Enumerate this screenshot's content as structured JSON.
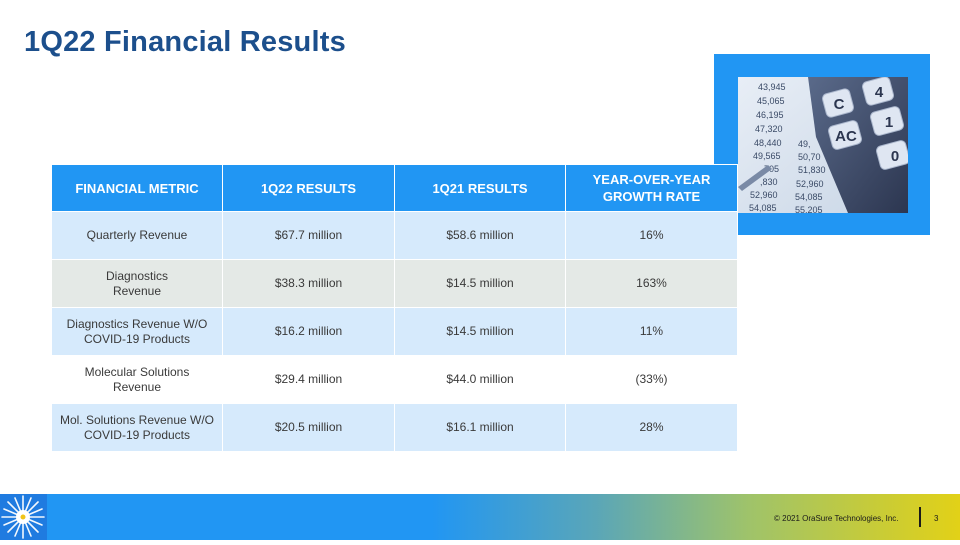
{
  "slide": {
    "title": "1Q22 Financial Results",
    "page_number": "3"
  },
  "table": {
    "headers": [
      "FINANCIAL METRIC",
      "1Q22 RESULTS",
      "1Q21 RESULTS",
      "YEAR-OVER-YEAR GROWTH RATE"
    ],
    "rows": [
      [
        "Quarterly Revenue",
        "$67.7 million",
        "$58.6 million",
        "16%"
      ],
      [
        "Diagnostics Revenue",
        "$38.3 million",
        "$14.5 million",
        "163%"
      ],
      [
        "Diagnostics Revenue W/O COVID-19 Products",
        "$16.2 million",
        "$14.5 million",
        "11%"
      ],
      [
        "Molecular Solutions Revenue",
        "$29.4 million",
        "$44.0 million",
        "(33%)"
      ],
      [
        "Mol. Solutions Revenue W/O COVID-19 Products",
        "$20.5 million",
        "$16.1 million",
        "28%"
      ]
    ]
  },
  "photo": {
    "icon": "calculator-photo",
    "numbers_left": [
      "43,945",
      "45,065",
      "46,195",
      "47,320",
      "48,440",
      "49,565",
      "705",
      ",830",
      "52,960",
      "54,085"
    ],
    "numbers_right": [
      "49,",
      "50,70",
      "51,830",
      "52,960",
      "54,085",
      "55,205"
    ],
    "keys": [
      "C",
      "4",
      "AC",
      "1",
      "0"
    ]
  },
  "footer": {
    "copyright": "© 2021 OraSure Technologies, Inc.",
    "logo_icon": "starburst-logo-icon"
  },
  "colors": {
    "title": "#1c4f8c",
    "header_bg": "#2196f3",
    "row_blue": "#d6eafc",
    "row_grey": "#e4e9e6"
  }
}
